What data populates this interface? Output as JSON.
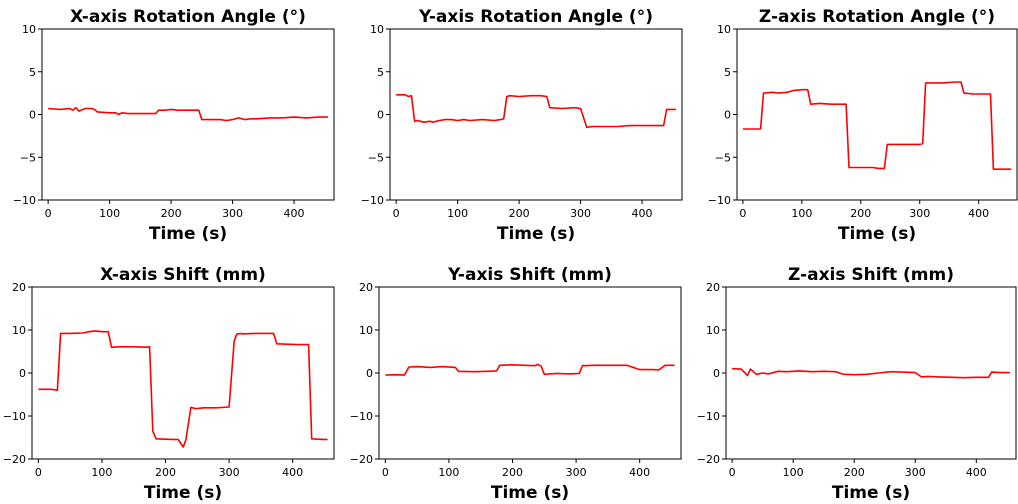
{
  "chart_data": [
    {
      "type": "line",
      "title": "X-axis Rotation Angle (°)",
      "xlabel": "Time (s)",
      "ylabel": "",
      "xlim": [
        -10,
        465
      ],
      "ylim": [
        -10,
        10
      ],
      "xticks": [
        0,
        100,
        200,
        300,
        400
      ],
      "yticks": [
        -10,
        -5,
        0,
        5,
        10
      ],
      "ytick_labels": [
        "−10",
        "−5",
        "0",
        "5",
        "10"
      ],
      "grid": false,
      "color": "#ff0000",
      "series": [
        {
          "x": [
            0,
            20,
            35,
            40,
            45,
            50,
            60,
            70,
            75,
            80,
            100,
            110,
            115,
            120,
            130,
            140,
            160,
            175,
            180,
            190,
            200,
            210,
            245,
            250,
            260,
            280,
            290,
            300,
            310,
            320,
            330,
            340,
            360,
            380,
            400,
            420,
            440,
            455
          ],
          "y": [
            0.7,
            0.6,
            0.7,
            0.5,
            0.8,
            0.4,
            0.7,
            0.7,
            0.6,
            0.3,
            0.2,
            0.2,
            0.0,
            0.2,
            0.1,
            0.1,
            0.1,
            0.1,
            0.5,
            0.5,
            0.6,
            0.5,
            0.5,
            -0.6,
            -0.6,
            -0.6,
            -0.7,
            -0.6,
            -0.4,
            -0.6,
            -0.5,
            -0.5,
            -0.4,
            -0.4,
            -0.3,
            -0.4,
            -0.3,
            -0.3
          ]
        }
      ]
    },
    {
      "type": "line",
      "title": "Y-axis Rotation Angle (°)",
      "xlabel": "Time (s)",
      "ylabel": "",
      "xlim": [
        -10,
        465
      ],
      "ylim": [
        -10,
        10
      ],
      "xticks": [
        0,
        100,
        200,
        300,
        400
      ],
      "yticks": [
        -10,
        -5,
        0,
        5,
        10
      ],
      "ytick_labels": [
        "−10",
        "−5",
        "0",
        "5",
        "10"
      ],
      "grid": false,
      "color": "#ff0000",
      "series": [
        {
          "x": [
            0,
            15,
            20,
            25,
            30,
            35,
            45,
            55,
            60,
            70,
            80,
            90,
            100,
            110,
            120,
            140,
            160,
            170,
            175,
            180,
            185,
            200,
            220,
            235,
            245,
            250,
            270,
            290,
            300,
            310,
            320,
            340,
            360,
            380,
            400,
            420,
            435,
            440,
            455
          ],
          "y": [
            2.3,
            2.3,
            2.1,
            2.2,
            -0.8,
            -0.7,
            -0.9,
            -0.8,
            -0.9,
            -0.7,
            -0.6,
            -0.6,
            -0.7,
            -0.6,
            -0.7,
            -0.6,
            -0.7,
            -0.6,
            -0.5,
            2.1,
            2.2,
            2.1,
            2.2,
            2.2,
            2.1,
            0.8,
            0.7,
            0.8,
            0.7,
            -1.5,
            -1.4,
            -1.4,
            -1.4,
            -1.3,
            -1.3,
            -1.3,
            -1.3,
            0.6,
            0.6
          ]
        }
      ]
    },
    {
      "type": "line",
      "title": "Z-axis Rotation Angle (°)",
      "xlabel": "Time (s)",
      "ylabel": "",
      "xlim": [
        -10,
        465
      ],
      "ylim": [
        -10,
        10
      ],
      "xticks": [
        0,
        100,
        200,
        300,
        400
      ],
      "yticks": [
        -10,
        -5,
        0,
        5,
        10
      ],
      "ytick_labels": [
        "−10",
        "−5",
        "0",
        "5",
        "10"
      ],
      "grid": false,
      "color": "#ff0000",
      "series": [
        {
          "x": [
            0,
            25,
            30,
            35,
            50,
            60,
            75,
            85,
            100,
            110,
            115,
            130,
            150,
            175,
            180,
            200,
            220,
            230,
            240,
            245,
            260,
            280,
            300,
            305,
            310,
            320,
            340,
            360,
            370,
            375,
            390,
            410,
            420,
            425,
            440,
            455
          ],
          "y": [
            -1.7,
            -1.7,
            -1.7,
            2.5,
            2.6,
            2.5,
            2.6,
            2.8,
            2.9,
            2.9,
            1.2,
            1.3,
            1.2,
            1.2,
            -6.2,
            -6.2,
            -6.2,
            -6.3,
            -6.3,
            -3.5,
            -3.5,
            -3.5,
            -3.5,
            -3.4,
            3.7,
            3.7,
            3.7,
            3.8,
            3.8,
            2.5,
            2.4,
            2.4,
            2.4,
            -6.4,
            -6.4,
            -6.4
          ]
        }
      ]
    },
    {
      "type": "line",
      "title": "X-axis Shift  (mm)",
      "xlabel": "Time (s)",
      "ylabel": "",
      "xlim": [
        -10,
        465
      ],
      "ylim": [
        -20,
        20
      ],
      "xticks": [
        0,
        100,
        200,
        300,
        400
      ],
      "yticks": [
        -20,
        -10,
        0,
        10,
        20
      ],
      "ytick_labels": [
        "−20",
        "−10",
        "0",
        "10",
        "20"
      ],
      "grid": false,
      "color": "#ff0000",
      "series": [
        {
          "x": [
            0,
            20,
            30,
            35,
            50,
            70,
            80,
            90,
            100,
            110,
            115,
            130,
            150,
            170,
            175,
            180,
            185,
            200,
            220,
            228,
            232,
            240,
            248,
            260,
            280,
            300,
            308,
            312,
            318,
            320,
            340,
            360,
            370,
            375,
            390,
            410,
            425,
            430,
            440,
            455
          ],
          "y": [
            -3.8,
            -3.8,
            -4.0,
            9.2,
            9.2,
            9.3,
            9.6,
            9.8,
            9.6,
            9.6,
            6.0,
            6.1,
            6.1,
            6.0,
            6.1,
            -13.5,
            -15.3,
            -15.4,
            -15.5,
            -17.2,
            -15.5,
            -8.0,
            -8.3,
            -8.1,
            -8.1,
            -7.9,
            7.5,
            9.0,
            9.2,
            9.1,
            9.2,
            9.2,
            9.2,
            6.8,
            6.7,
            6.6,
            6.6,
            -15.3,
            -15.4,
            -15.5
          ]
        }
      ]
    },
    {
      "type": "line",
      "title": "Y-axis Shift (mm)",
      "xlabel": "Time (s)",
      "ylabel": "",
      "xlim": [
        -10,
        465
      ],
      "ylim": [
        -20,
        20
      ],
      "xticks": [
        0,
        100,
        200,
        300,
        400
      ],
      "yticks": [
        -20,
        -10,
        0,
        10,
        20
      ],
      "ytick_labels": [
        "−20",
        "−10",
        "0",
        "10",
        "20"
      ],
      "grid": false,
      "color": "#ff0000",
      "series": [
        {
          "x": [
            0,
            15,
            30,
            37,
            50,
            70,
            90,
            110,
            115,
            140,
            160,
            175,
            180,
            200,
            220,
            235,
            240,
            245,
            250,
            270,
            290,
            305,
            310,
            330,
            350,
            370,
            380,
            400,
            420,
            430,
            440,
            455
          ],
          "y": [
            -0.5,
            -0.4,
            -0.5,
            1.4,
            1.5,
            1.3,
            1.5,
            1.3,
            0.4,
            0.3,
            0.4,
            0.5,
            1.8,
            1.9,
            1.8,
            1.7,
            2.0,
            1.6,
            -0.3,
            -0.1,
            -0.2,
            -0.1,
            1.7,
            1.8,
            1.8,
            1.8,
            1.8,
            0.8,
            0.8,
            0.7,
            1.8,
            1.8
          ]
        }
      ]
    },
    {
      "type": "line",
      "title": "Z-axis Shift (mm)",
      "xlabel": "Time (s)",
      "ylabel": "",
      "xlim": [
        -10,
        465
      ],
      "ylim": [
        -20,
        20
      ],
      "xticks": [
        0,
        100,
        200,
        300,
        400
      ],
      "yticks": [
        -20,
        -10,
        0,
        10,
        20
      ],
      "ytick_labels": [
        "−20",
        "−10",
        "0",
        "10",
        "20"
      ],
      "grid": false,
      "color": "#ff0000",
      "series": [
        {
          "x": [
            0,
            15,
            25,
            30,
            40,
            50,
            60,
            75,
            90,
            110,
            130,
            150,
            170,
            180,
            185,
            200,
            220,
            240,
            260,
            280,
            300,
            310,
            320,
            340,
            360,
            380,
            400,
            420,
            425,
            440,
            455
          ],
          "y": [
            1.0,
            0.9,
            -0.6,
            0.9,
            -0.3,
            0.0,
            -0.2,
            0.4,
            0.3,
            0.5,
            0.3,
            0.4,
            0.3,
            -0.2,
            -0.3,
            -0.4,
            -0.3,
            0.0,
            0.3,
            0.2,
            0.1,
            -0.9,
            -0.8,
            -0.9,
            -1.0,
            -1.1,
            -1.0,
            -1.0,
            0.2,
            0.1,
            0.1
          ]
        }
      ]
    }
  ]
}
